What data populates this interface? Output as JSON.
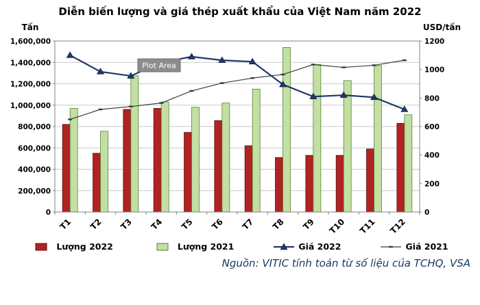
{
  "source": "Nguồn: VITIC tính toán từ số liệu của TCHQ, VSA",
  "colors": {
    "bar_2022": "#B22222",
    "bar_2022_border": "#5A0F0F",
    "bar_2021": "#C3DFA4",
    "bar_2021_border": "#56812F",
    "line_2022": "#1F3864",
    "line_2021": "#3B3B3B",
    "gridline": "#C9C9C9",
    "plot_border": "#808080",
    "tooltip_bg": "#8C8C8C",
    "tooltip_text": "#FFFFFF",
    "source_text": "#17365D"
  },
  "chart_data": {
    "type": "combo-bar-line",
    "title": "Diễn biến lượng và giá thép xuất khẩu của Việt Nam năm 2022",
    "categories": [
      "T1",
      "T2",
      "T3",
      "T4",
      "T5",
      "T6",
      "T7",
      "T8",
      "T9",
      "T10",
      "T11",
      "T12"
    ],
    "series": [
      {
        "name": "Lượng 2022",
        "type": "bar",
        "axis": "left",
        "color": "#B22222",
        "border": "#5A0F0F",
        "values": [
          820000,
          550000,
          960000,
          970000,
          745000,
          855000,
          620000,
          510000,
          530000,
          530000,
          590000,
          830000
        ]
      },
      {
        "name": "Lượng 2021",
        "type": "bar",
        "axis": "left",
        "color": "#C3DFA4",
        "border": "#56812F",
        "values": [
          970000,
          755000,
          1275000,
          1030000,
          980000,
          1020000,
          1150000,
          1540000,
          1380000,
          1230000,
          1370000,
          910000
        ]
      },
      {
        "name": "Giá 2022",
        "type": "line",
        "axis": "right",
        "marker": "triangle",
        "color": "#1F3864",
        "values": [
          1100,
          985,
          955,
          1050,
          1090,
          1065,
          1055,
          895,
          810,
          820,
          805,
          720
        ]
      },
      {
        "name": "Giá 2021",
        "type": "line",
        "axis": "right",
        "marker": "dash",
        "color": "#3B3B3B",
        "values": [
          650,
          720,
          740,
          765,
          850,
          905,
          940,
          965,
          1035,
          1015,
          1030,
          1065
        ]
      }
    ],
    "axes": {
      "left": {
        "label": "Tấn",
        "min": 0,
        "max": 1600000,
        "step": 200000
      },
      "right": {
        "label": "USD/tấn",
        "min": 0,
        "max": 1200,
        "step": 200
      }
    },
    "grid": true,
    "legend_position": "bottom",
    "annotations": [
      {
        "text": "Plot Area",
        "x_between": [
          "T3",
          "T4"
        ]
      }
    ]
  }
}
